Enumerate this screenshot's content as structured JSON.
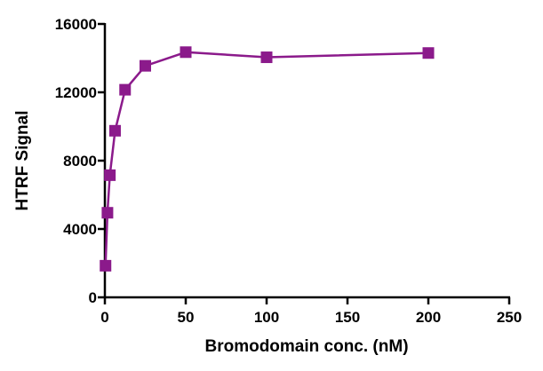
{
  "chart_data": {
    "type": "line",
    "title": "",
    "xlabel": "Bromodomain conc. (nM)",
    "ylabel": "HTRF Signal",
    "xlim": [
      0,
      250
    ],
    "ylim": [
      0,
      16000
    ],
    "x_ticks": [
      0,
      50,
      100,
      150,
      200,
      250
    ],
    "y_ticks": [
      0,
      4000,
      8000,
      12000,
      16000
    ],
    "grid": false,
    "legend": "none",
    "marker": "square",
    "color": "#8b1a8b",
    "series": [
      {
        "x": [
          0.4,
          1.6,
          3.1,
          6.3,
          12.5,
          25,
          50,
          100,
          200
        ],
        "y": [
          1850,
          4950,
          7150,
          9750,
          12150,
          13550,
          14350,
          14050,
          14300
        ]
      }
    ]
  }
}
